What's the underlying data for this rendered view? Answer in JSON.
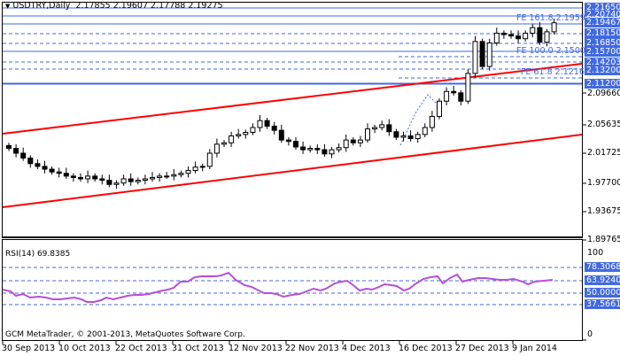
{
  "header": {
    "symbol": "USDTRY,Daily",
    "ohlc": "2.17855 2.19607 2.17788 2.19275"
  },
  "rsi": {
    "label": "RSI(14) 69.8385",
    "levels": [
      "78.30688",
      "63.92405",
      "50.00000",
      "37.56614"
    ],
    "scale_top": "100",
    "scale_bottom": "0"
  },
  "footer": {
    "copyright": "GCM MetaTrader, © 2001-2013, MetaQuotes Software Corp."
  },
  "fib_labels": {
    "fe161": "FE 161.8 2.19595",
    "fe100": "FE 100.0 2.15003",
    "fe61": "FE 61.8 2.12165"
  },
  "price_axis": {
    "highlighted": [
      "2.21650",
      "2.20740",
      "2.19467",
      "2.18150",
      "2.16850",
      "2.15700",
      "2.14203",
      "2.13200",
      "2.11200"
    ],
    "ticks": [
      "2.09660",
      "2.05635",
      "2.01725",
      "1.97700",
      "1.93675",
      "1.89765"
    ]
  },
  "time_axis": [
    "30 Sep 2013",
    "10 Oct 2013",
    "22 Oct 2013",
    "31 Oct 2013",
    "12 Nov 2013",
    "22 Nov 2013",
    "4 Dec 2013",
    "16 Dec 2013",
    "27 Dec 2013",
    "9 Jan 2014"
  ],
  "colors": {
    "level_line": "#4169e1",
    "channel": "#ff0000",
    "rsi_line": "#b450d8",
    "axis_highlight": "#4169e1"
  },
  "chart_data": {
    "type": "candlestick",
    "title": "USDTRY,Daily",
    "ohlc_last": {
      "open": 2.17855,
      "high": 2.19607,
      "low": 2.17788,
      "close": 2.19275
    },
    "ylim": [
      1.885,
      2.222
    ],
    "horizontal_levels": [
      2.2165,
      2.2074,
      2.19467,
      2.1815,
      2.1685,
      2.157,
      2.14203,
      2.132,
      2.112
    ],
    "fibonacci_expansion": [
      {
        "label": "FE 161.8",
        "value": 2.19595
      },
      {
        "label": "FE 100.0",
        "value": 2.15003
      },
      {
        "label": "FE 61.8",
        "value": 2.12165
      }
    ],
    "channel_lines": [
      {
        "name": "upper",
        "start": 2.043,
        "end": 2.131
      },
      {
        "name": "lower",
        "start": 1.942,
        "end": 2.034
      }
    ],
    "x_tick_labels": [
      "30 Sep 2013",
      "10 Oct 2013",
      "22 Oct 2013",
      "31 Oct 2013",
      "12 Nov 2013",
      "22 Nov 2013",
      "4 Dec 2013",
      "16 Dec 2013",
      "27 Dec 2013",
      "9 Jan 2014"
    ],
    "y_tick_labels": [
      "2.09660",
      "2.05635",
      "2.01725",
      "1.97700",
      "1.93675",
      "1.89765"
    ],
    "closes_approx": [
      2.012,
      2.005,
      1.998,
      1.99,
      1.986,
      1.982,
      1.978,
      1.976,
      1.972,
      1.97,
      1.968,
      1.972,
      1.968,
      1.966,
      1.96,
      1.962,
      1.968,
      1.964,
      1.966,
      1.968,
      1.97,
      1.972,
      1.972,
      1.974,
      1.976,
      1.98,
      1.985,
      1.986,
      2.005,
      2.018,
      2.02,
      2.03,
      2.032,
      2.035,
      2.042,
      2.052,
      2.044,
      2.038,
      2.024,
      2.022,
      2.014,
      2.01,
      2.012,
      2.01,
      2.004,
      2.01,
      2.013,
      2.024,
      2.02,
      2.024,
      2.04,
      2.042,
      2.046,
      2.036,
      2.028,
      2.03,
      2.026,
      2.032,
      2.042,
      2.058,
      2.08,
      2.094,
      2.092,
      2.08,
      2.12,
      2.166,
      2.13,
      2.164,
      2.178,
      2.176,
      2.174,
      2.17,
      2.178,
      2.186,
      2.165,
      2.18,
      2.193
    ],
    "rsi": {
      "name": "RSI(14)",
      "last": 69.8385,
      "levels": [
        78.30688,
        63.92405,
        50.0,
        37.56614
      ],
      "ylim": [
        0,
        100
      ]
    }
  }
}
